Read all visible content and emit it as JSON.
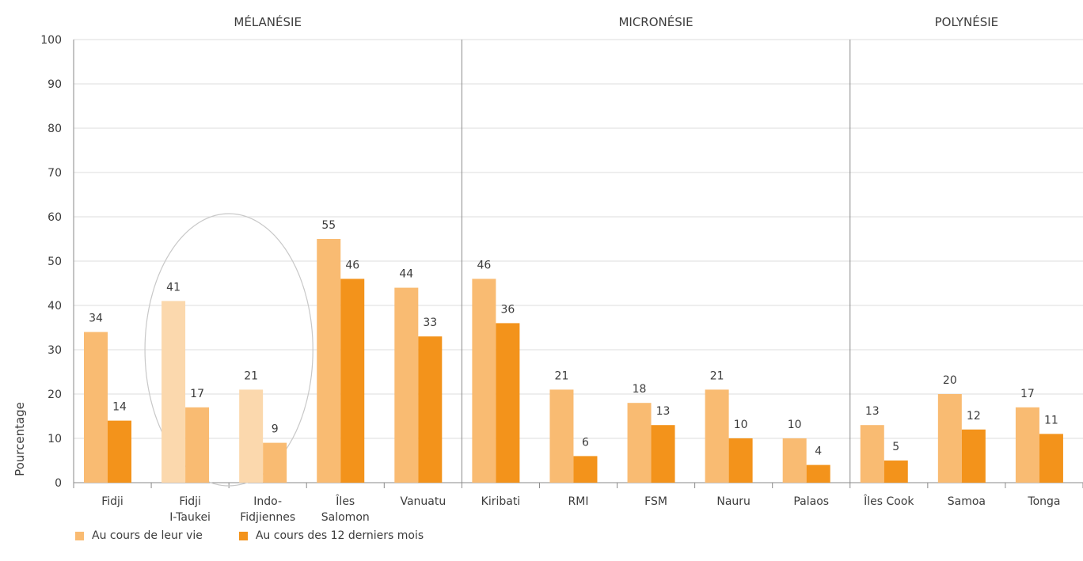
{
  "chart_data": {
    "type": "bar",
    "ylabel": "Pourcentage",
    "ylim": [
      0,
      100
    ],
    "yticks": [
      0,
      10,
      20,
      30,
      40,
      50,
      60,
      70,
      80,
      90,
      100
    ],
    "grid": true,
    "legend_position": "bottom-left",
    "groups": [
      {
        "name": "MÉLANÉSIE",
        "start": 0,
        "end": 4
      },
      {
        "name": "MICRONÉSIE",
        "start": 5,
        "end": 9
      },
      {
        "name": "POLYNÉSIE",
        "start": 10,
        "end": 12
      }
    ],
    "categories": [
      "Fidji",
      "Fidji I-Taukei",
      "Indo-Fidjiennes",
      "Îles Salomon",
      "Vanuatu",
      "Kiribati",
      "RMI",
      "FSM",
      "Nauru",
      "Palaos",
      "Îles Cook",
      "Samoa",
      "Tonga"
    ],
    "category_labels": [
      [
        "Fidji"
      ],
      [
        "Fidji",
        "I-Taukei"
      ],
      [
        "Indo-",
        "Fidjiennes"
      ],
      [
        "Îles",
        "Salomon"
      ],
      [
        "Vanuatu"
      ],
      [
        "Kiribati"
      ],
      [
        "RMI"
      ],
      [
        "FSM"
      ],
      [
        "Nauru"
      ],
      [
        "Palaos"
      ],
      [
        "Îles Cook"
      ],
      [
        "Samoa"
      ],
      [
        "Tonga"
      ]
    ],
    "highlighted_categories": [
      "Fidji I-Taukei",
      "Indo-Fidjiennes"
    ],
    "series": [
      {
        "name": "Au cours de leur vie",
        "color": "#f9bb72",
        "highlight_color": "#fbd8ad",
        "values": [
          34,
          41,
          21,
          55,
          44,
          46,
          21,
          18,
          21,
          10,
          13,
          20,
          17
        ]
      },
      {
        "name": "Au cours des 12 derniers mois",
        "color": "#f3931b",
        "highlight_color": "#f9bb72",
        "values": [
          14,
          17,
          9,
          46,
          33,
          36,
          6,
          13,
          10,
          4,
          5,
          12,
          11
        ]
      }
    ]
  }
}
